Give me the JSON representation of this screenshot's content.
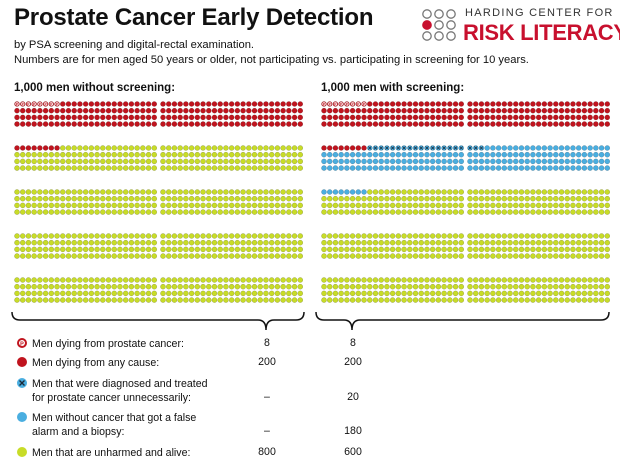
{
  "header": {
    "title": "Prostate Cancer Early Detection",
    "subtitle_line1": "by PSA screening and digital-rectal examination.",
    "subtitle_line2": "Numbers are for men aged 50 years or older, not participating vs. participating in screening for 10 years."
  },
  "logo": {
    "top_text": "HARDING CENTER FOR",
    "bottom_text": "RISK LITERACY",
    "color": "#c8102e"
  },
  "groups": {
    "left_title": "1,000 men without screening:",
    "right_title": "1,000 men with screening:"
  },
  "icon_data": {
    "total_per_group": 1000,
    "glyph_letter": "P",
    "categories": [
      {
        "key": "prostate_death",
        "color": "#c0141e"
      },
      {
        "key": "any_death",
        "color": "#c0141e"
      },
      {
        "key": "overdiagnosed",
        "color": "#4aaee0"
      },
      {
        "key": "false_alarm",
        "color": "#4aaee0"
      },
      {
        "key": "unharmed",
        "color": "#c8dc28"
      }
    ],
    "left_counts": {
      "prostate_death": 8,
      "any_death": 200,
      "overdiagnosed": 0,
      "false_alarm": 0,
      "unharmed": 800
    },
    "right_counts": {
      "prostate_death": 8,
      "any_death": 200,
      "overdiagnosed": 20,
      "false_alarm": 180,
      "unharmed": 600
    }
  },
  "legend": [
    {
      "icon": "prostate-death-icon",
      "label": "Men dying from prostate cancer:",
      "without": "8",
      "with": "8"
    },
    {
      "icon": "any-cause-death-icon",
      "label": "Men dying from any cause:",
      "without": "200",
      "with": "200"
    },
    {
      "icon": "overdiagnosis-icon",
      "label_line1": "Men that were diagnosed and treated",
      "label_line2": "for prostate cancer unnecessarily:",
      "without": "–",
      "with": "20"
    },
    {
      "icon": "false-alarm-icon",
      "label_line1": "Men without cancer that got a false",
      "label_line2": "alarm and a biopsy:",
      "without": "–",
      "with": "180"
    },
    {
      "icon": "unharmed-icon",
      "label": "Men that are unharmed and alive:",
      "without": "800",
      "with": "600"
    }
  ]
}
